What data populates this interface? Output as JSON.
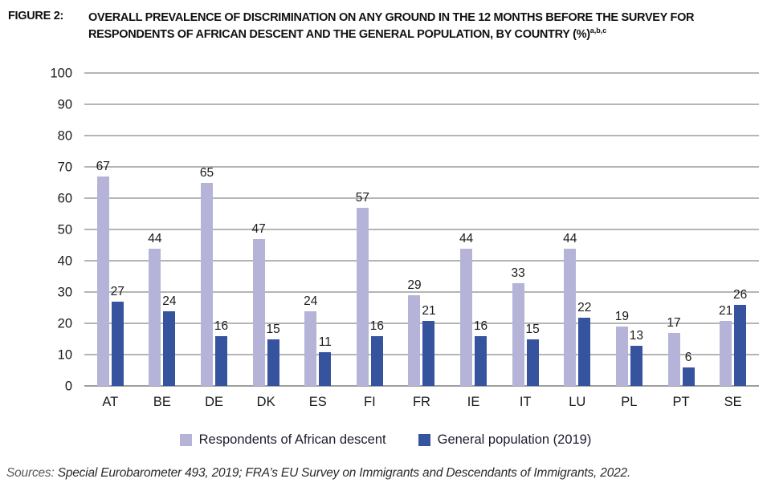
{
  "figure": {
    "label": "FIGURE 2:",
    "title": "OVERALL PREVALENCE OF DISCRIMINATION ON ANY GROUND IN THE 12 MONTHS BEFORE THE SURVEY FOR RESPONDENTS OF AFRICAN DESCENT AND THE GENERAL POPULATION, BY COUNTRY (%)",
    "title_superscript": "a,b,c"
  },
  "chart_data": {
    "type": "bar",
    "categories": [
      "AT",
      "BE",
      "DE",
      "DK",
      "ES",
      "FI",
      "FR",
      "IE",
      "IT",
      "LU",
      "PL",
      "PT",
      "SE"
    ],
    "series": [
      {
        "name": "Respondents of African descent",
        "color": "#b5b4d8",
        "values": [
          67,
          44,
          65,
          47,
          24,
          57,
          29,
          44,
          33,
          44,
          19,
          17,
          21
        ]
      },
      {
        "name": "General population (2019)",
        "color": "#36539e",
        "values": [
          27,
          24,
          16,
          15,
          11,
          16,
          21,
          16,
          15,
          22,
          13,
          6,
          26
        ]
      }
    ],
    "ylim": [
      0,
      100
    ],
    "yticks": [
      0,
      10,
      20,
      30,
      40,
      50,
      60,
      70,
      80,
      90,
      100
    ],
    "grid": true,
    "legend_position": "bottom",
    "value_labels": true
  },
  "sources": {
    "prefix": "Sources:",
    "text": "Special Eurobarometer 493, 2019; FRA’s EU Survey on Immigrants and Descendants of Immigrants, 2022."
  }
}
